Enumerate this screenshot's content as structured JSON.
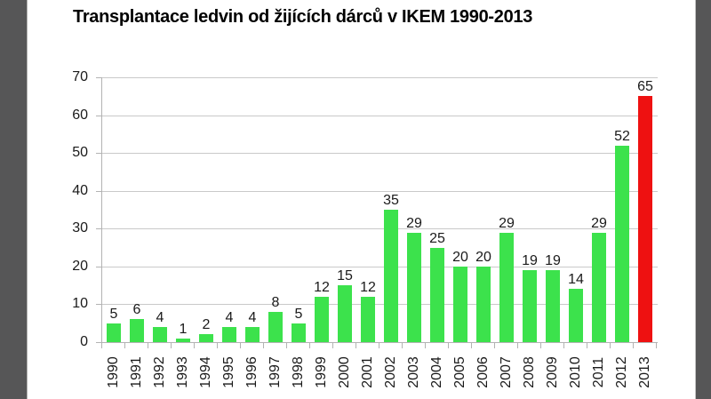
{
  "chart_data": {
    "type": "bar",
    "title": "Transplantace ledvin od žijících dárců v IKEM 1990-2013",
    "categories": [
      "1990",
      "1991",
      "1992",
      "1993",
      "1994",
      "1995",
      "1996",
      "1997",
      "1998",
      "1999",
      "2000",
      "2001",
      "2002",
      "2003",
      "2004",
      "2005",
      "2006",
      "2007",
      "2008",
      "2009",
      "2010",
      "2011",
      "2012",
      "2013"
    ],
    "values": [
      5,
      6,
      4,
      1,
      2,
      4,
      4,
      8,
      5,
      12,
      15,
      12,
      35,
      29,
      25,
      20,
      20,
      29,
      19,
      19,
      14,
      29,
      52,
      65
    ],
    "value_labels_shown": true,
    "xlabel": "",
    "ylabel": "",
    "ylim": [
      0,
      70
    ],
    "yticks": [
      0,
      10,
      20,
      30,
      40,
      50,
      60,
      70
    ],
    "grid": true,
    "legend": "none",
    "bar_color": "#3ce24c",
    "highlight": {
      "category": "2013",
      "color": "#ee1111"
    }
  },
  "colors": {
    "background": "#ffffff",
    "letterbox": "#565657",
    "gridline": "#c9c9c9",
    "axis": "#b3b3b3",
    "label_text": "#1a1a1a",
    "title_text": "#000000"
  }
}
